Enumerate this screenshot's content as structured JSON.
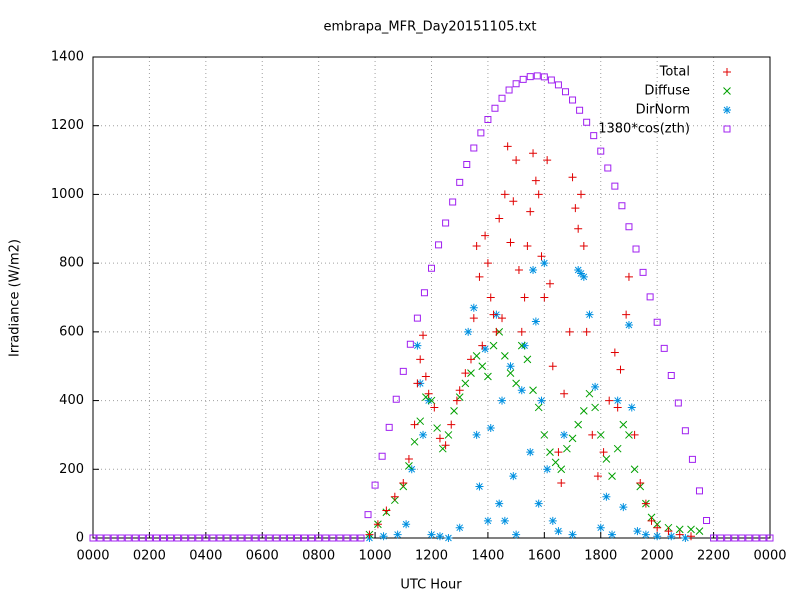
{
  "chart_data": {
    "type": "scatter",
    "title": "embrapa_MFR_Day20151105.txt",
    "x_label": "UTC Hour",
    "y_label": "Irradiance (W/m2)",
    "xlim": [
      0,
      24
    ],
    "ylim": [
      0,
      1400
    ],
    "xticks": [
      {
        "value": 0,
        "label": "0000"
      },
      {
        "value": 2,
        "label": "0200"
      },
      {
        "value": 4,
        "label": "0400"
      },
      {
        "value": 6,
        "label": "0600"
      },
      {
        "value": 8,
        "label": "0800"
      },
      {
        "value": 10,
        "label": "1000"
      },
      {
        "value": 12,
        "label": "1200"
      },
      {
        "value": 14,
        "label": "1400"
      },
      {
        "value": 16,
        "label": "1600"
      },
      {
        "value": 18,
        "label": "1800"
      },
      {
        "value": 20,
        "label": "2000"
      },
      {
        "value": 22,
        "label": "2200"
      },
      {
        "value": 24,
        "label": "0000"
      }
    ],
    "yticks": [
      0,
      200,
      400,
      600,
      800,
      1000,
      1200,
      1400
    ],
    "grid": true,
    "legend": "top-right",
    "series": [
      {
        "name": "Total",
        "color": "#e00000",
        "marker": "plus",
        "x": [
          9.8,
          10.1,
          10.4,
          10.7,
          11.0,
          11.2,
          11.4,
          11.5,
          11.6,
          11.7,
          11.8,
          11.9,
          12.1,
          12.3,
          12.5,
          12.7,
          12.9,
          13.0,
          13.2,
          13.4,
          13.5,
          13.6,
          13.7,
          13.8,
          13.9,
          14.0,
          14.1,
          14.2,
          14.3,
          14.4,
          14.5,
          14.6,
          14.7,
          14.8,
          14.9,
          15.0,
          15.1,
          15.2,
          15.3,
          15.4,
          15.5,
          15.6,
          15.7,
          15.8,
          15.9,
          16.0,
          16.1,
          16.2,
          16.3,
          16.5,
          16.6,
          16.7,
          16.9,
          17.0,
          17.1,
          17.2,
          17.3,
          17.4,
          17.5,
          17.7,
          17.9,
          18.1,
          18.3,
          18.5,
          18.6,
          18.7,
          18.9,
          19.0,
          19.2,
          19.4,
          19.6,
          19.8,
          20.0,
          20.4,
          20.8,
          21.2
        ],
        "values": [
          10,
          40,
          80,
          120,
          160,
          230,
          330,
          450,
          520,
          590,
          470,
          420,
          380,
          290,
          270,
          330,
          400,
          430,
          480,
          520,
          640,
          850,
          760,
          560,
          880,
          800,
          700,
          650,
          600,
          930,
          640,
          1000,
          1140,
          860,
          980,
          1100,
          780,
          600,
          700,
          850,
          950,
          1120,
          1040,
          1000,
          820,
          700,
          1100,
          740,
          500,
          250,
          160,
          420,
          600,
          1050,
          960,
          900,
          1000,
          850,
          600,
          300,
          180,
          250,
          400,
          540,
          380,
          490,
          650,
          760,
          300,
          160,
          100,
          50,
          30,
          20,
          10,
          5
        ]
      },
      {
        "name": "Diffuse",
        "color": "#00a000",
        "marker": "cross",
        "x": [
          9.8,
          10.1,
          10.4,
          10.7,
          11.0,
          11.2,
          11.4,
          11.6,
          11.8,
          12.0,
          12.2,
          12.4,
          12.6,
          12.8,
          13.0,
          13.2,
          13.4,
          13.6,
          13.8,
          14.0,
          14.2,
          14.4,
          14.6,
          14.8,
          15.0,
          15.2,
          15.4,
          15.6,
          15.8,
          16.0,
          16.2,
          16.4,
          16.6,
          16.8,
          17.0,
          17.2,
          17.4,
          17.6,
          17.8,
          18.0,
          18.2,
          18.4,
          18.6,
          18.8,
          19.0,
          19.2,
          19.4,
          19.6,
          19.8,
          20.0,
          20.4,
          20.8,
          21.2,
          21.5
        ],
        "values": [
          10,
          40,
          75,
          110,
          150,
          210,
          280,
          340,
          410,
          400,
          320,
          260,
          300,
          370,
          410,
          450,
          480,
          530,
          500,
          470,
          560,
          600,
          530,
          480,
          450,
          560,
          520,
          430,
          380,
          300,
          250,
          220,
          200,
          260,
          290,
          330,
          370,
          420,
          380,
          300,
          230,
          180,
          260,
          330,
          300,
          200,
          150,
          100,
          60,
          40,
          30,
          25,
          25,
          20
        ]
      },
      {
        "name": "DirNorm",
        "color": "#0090e0",
        "marker": "star",
        "x": [
          9.8,
          10.3,
          10.8,
          11.1,
          11.3,
          11.5,
          11.6,
          11.7,
          11.9,
          12.0,
          12.3,
          12.6,
          13.0,
          13.3,
          13.5,
          13.6,
          13.7,
          13.9,
          14.0,
          14.1,
          14.3,
          14.4,
          14.5,
          14.6,
          14.8,
          14.9,
          15.0,
          15.2,
          15.3,
          15.5,
          15.6,
          15.7,
          15.8,
          15.9,
          16.0,
          16.1,
          16.3,
          16.5,
          16.7,
          17.0,
          17.2,
          17.3,
          17.4,
          17.6,
          17.8,
          18.0,
          18.2,
          18.4,
          18.6,
          18.8,
          19.0,
          19.1,
          19.3,
          19.6,
          20.0,
          20.5,
          21.0
        ],
        "values": [
          0,
          5,
          10,
          40,
          200,
          560,
          450,
          300,
          400,
          10,
          5,
          0,
          30,
          600,
          670,
          300,
          150,
          550,
          50,
          320,
          650,
          100,
          400,
          50,
          500,
          180,
          10,
          430,
          560,
          250,
          780,
          630,
          100,
          400,
          800,
          200,
          50,
          20,
          300,
          10,
          780,
          770,
          760,
          650,
          440,
          30,
          120,
          10,
          400,
          90,
          620,
          380,
          20,
          10,
          5,
          5,
          0
        ]
      },
      {
        "name": "1380*cos(zth)",
        "color": "#a020f0",
        "marker": "square",
        "x": [
          0,
          0.25,
          0.5,
          0.75,
          1,
          1.25,
          1.5,
          1.75,
          2,
          2.25,
          2.5,
          2.75,
          3,
          3.25,
          3.5,
          3.75,
          4,
          4.25,
          4.5,
          4.75,
          5,
          5.25,
          5.5,
          5.75,
          6,
          6.25,
          6.5,
          6.75,
          7,
          7.25,
          7.5,
          7.75,
          8,
          8.25,
          8.5,
          8.75,
          9,
          9.25,
          9.5,
          9.75,
          10,
          10.25,
          10.5,
          10.75,
          11,
          11.25,
          11.5,
          11.75,
          12,
          12.25,
          12.5,
          12.75,
          13,
          13.25,
          13.5,
          13.75,
          14,
          14.25,
          14.5,
          14.75,
          15,
          15.25,
          15.5,
          15.75,
          16,
          16.25,
          16.5,
          16.75,
          17,
          17.25,
          17.5,
          17.75,
          18,
          18.25,
          18.5,
          18.75,
          19,
          19.25,
          19.5,
          19.75,
          20,
          20.25,
          20.5,
          20.75,
          21,
          21.25,
          21.5,
          21.75,
          22,
          22.25,
          22.5,
          22.75,
          23,
          23.25,
          23.5,
          23.75,
          24
        ],
        "values": [
          0,
          0,
          0,
          0,
          0,
          0,
          0,
          0,
          0,
          0,
          0,
          0,
          0,
          0,
          0,
          0,
          0,
          0,
          0,
          0,
          0,
          0,
          0,
          0,
          0,
          0,
          0,
          0,
          0,
          0,
          0,
          0,
          0,
          0,
          0,
          0,
          0,
          0,
          0,
          68,
          154,
          238,
          322,
          404,
          485,
          564,
          640,
          714,
          785,
          853,
          917,
          978,
          1035,
          1087,
          1135,
          1179,
          1218,
          1251,
          1280,
          1304,
          1322,
          1335,
          1343,
          1345,
          1342,
          1333,
          1319,
          1299,
          1275,
          1245,
          1210,
          1171,
          1126,
          1077,
          1024,
          967,
          906,
          841,
          773,
          702,
          628,
          552,
          473,
          393,
          312,
          229,
          137,
          51,
          0,
          0,
          0,
          0,
          0,
          0,
          0,
          0,
          0
        ]
      }
    ]
  }
}
